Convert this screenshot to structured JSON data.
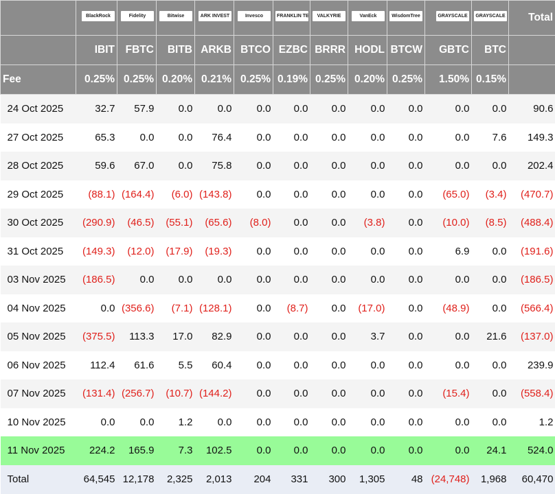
{
  "header": {
    "logos": [
      "BlackRock",
      "Fidelity",
      "Bitwise",
      "ARK INVEST",
      "Invesco",
      "FRANKLIN TEMPLETON",
      "VALKYRIE",
      "VanEck",
      "WisdomTree",
      "GRAYSCALE",
      "GRAYSCALE"
    ],
    "total_label": "Total",
    "tickers": [
      "IBIT",
      "FBTC",
      "BITB",
      "ARKB",
      "BTCO",
      "EZBC",
      "BRRR",
      "HODL",
      "BTCW",
      "GBTC",
      "BTC"
    ],
    "fee_label": "Fee",
    "fees": [
      "0.25%",
      "0.25%",
      "0.20%",
      "0.21%",
      "0.25%",
      "0.19%",
      "0.25%",
      "0.20%",
      "0.25%",
      "1.50%",
      "0.15%"
    ]
  },
  "colors": {
    "header_bg": "#8c8c8c",
    "negative": "#e0201b",
    "highlight": "#98fb98",
    "total_bg": "#e9edf5"
  },
  "rows": [
    [
      "24 Oct 2025",
      "32.7",
      "57.9",
      "0.0",
      "0.0",
      "0.0",
      "0.0",
      "0.0",
      "0.0",
      "0.0",
      "0.0",
      "0.0",
      "90.6"
    ],
    [
      "27 Oct 2025",
      "65.3",
      "0.0",
      "0.0",
      "76.4",
      "0.0",
      "0.0",
      "0.0",
      "0.0",
      "0.0",
      "0.0",
      "7.6",
      "149.3"
    ],
    [
      "28 Oct 2025",
      "59.6",
      "67.0",
      "0.0",
      "75.8",
      "0.0",
      "0.0",
      "0.0",
      "0.0",
      "0.0",
      "0.0",
      "0.0",
      "202.4"
    ],
    [
      "29 Oct 2025",
      "(88.1)",
      "(164.4)",
      "(6.0)",
      "(143.8)",
      "0.0",
      "0.0",
      "0.0",
      "0.0",
      "0.0",
      "(65.0)",
      "(3.4)",
      "(470.7)"
    ],
    [
      "30 Oct 2025",
      "(290.9)",
      "(46.5)",
      "(55.1)",
      "(65.6)",
      "(8.0)",
      "0.0",
      "0.0",
      "(3.8)",
      "0.0",
      "(10.0)",
      "(8.5)",
      "(488.4)"
    ],
    [
      "31 Oct 2025",
      "(149.3)",
      "(12.0)",
      "(17.9)",
      "(19.3)",
      "0.0",
      "0.0",
      "0.0",
      "0.0",
      "0.0",
      "6.9",
      "0.0",
      "(191.6)"
    ],
    [
      "03 Nov 2025",
      "(186.5)",
      "0.0",
      "0.0",
      "0.0",
      "0.0",
      "0.0",
      "0.0",
      "0.0",
      "0.0",
      "0.0",
      "0.0",
      "(186.5)"
    ],
    [
      "04 Nov 2025",
      "0.0",
      "(356.6)",
      "(7.1)",
      "(128.1)",
      "0.0",
      "(8.7)",
      "0.0",
      "(17.0)",
      "0.0",
      "(48.9)",
      "0.0",
      "(566.4)"
    ],
    [
      "05 Nov 2025",
      "(375.5)",
      "113.3",
      "17.0",
      "82.9",
      "0.0",
      "0.0",
      "0.0",
      "3.7",
      "0.0",
      "0.0",
      "21.6",
      "(137.0)"
    ],
    [
      "06 Nov 2025",
      "112.4",
      "61.6",
      "5.5",
      "60.4",
      "0.0",
      "0.0",
      "0.0",
      "0.0",
      "0.0",
      "0.0",
      "0.0",
      "239.9"
    ],
    [
      "07 Nov 2025",
      "(131.4)",
      "(256.7)",
      "(10.7)",
      "(144.2)",
      "0.0",
      "0.0",
      "0.0",
      "0.0",
      "0.0",
      "(15.4)",
      "0.0",
      "(558.4)"
    ],
    [
      "10 Nov 2025",
      "0.0",
      "0.0",
      "1.2",
      "0.0",
      "0.0",
      "0.0",
      "0.0",
      "0.0",
      "0.0",
      "0.0",
      "0.0",
      "1.2"
    ],
    [
      "11 Nov 2025",
      "224.2",
      "165.9",
      "7.3",
      "102.5",
      "0.0",
      "0.0",
      "0.0",
      "0.0",
      "0.0",
      "0.0",
      "24.1",
      "524.0"
    ]
  ],
  "highlight_row": "11 Nov 2025",
  "total_row": [
    "Total",
    "64,545",
    "12,178",
    "2,325",
    "2,013",
    "204",
    "331",
    "300",
    "1,305",
    "48",
    "(24,748)",
    "1,968",
    "60,470"
  ]
}
